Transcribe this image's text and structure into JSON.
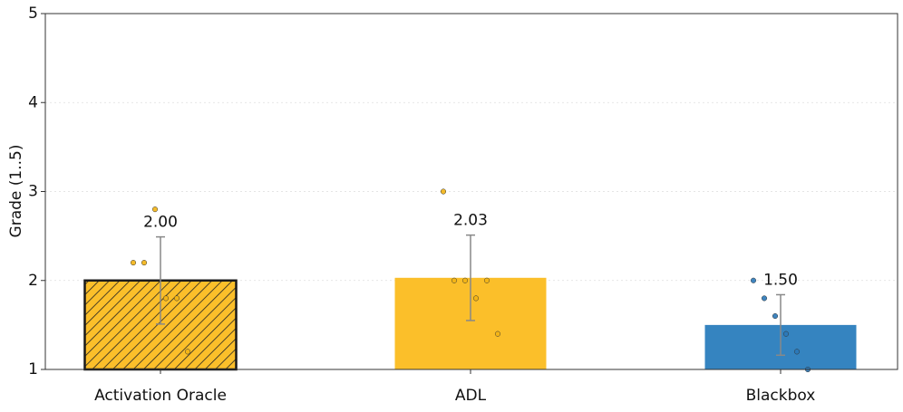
{
  "chart_data": {
    "type": "bar",
    "ylabel": "Grade (1..5)",
    "categories": [
      "Activation Oracle",
      "ADL",
      "Blackbox"
    ],
    "values": [
      2.0,
      2.03,
      1.5
    ],
    "value_labels": [
      "2.00",
      "2.03",
      "1.50"
    ],
    "errors": [
      0.49,
      0.48,
      0.34
    ],
    "points": [
      [
        2.2,
        2.2,
        2.8,
        1.8,
        1.8,
        1.2
      ],
      [
        3.0,
        2.0,
        2.0,
        1.8,
        2.0,
        1.4
      ],
      [
        2.0,
        1.8,
        1.6,
        1.4,
        1.2,
        1.0
      ]
    ],
    "colors": [
      "#fbbf2a",
      "#fbbf2a",
      "#3584c0"
    ],
    "point_colors": [
      "#f3b414",
      "#f3b414",
      "#2a78b8"
    ],
    "hatched": [
      true,
      false,
      false
    ],
    "ylim": [
      1,
      5
    ],
    "yticks": [
      1,
      2,
      3,
      4,
      5
    ],
    "grid": true
  }
}
